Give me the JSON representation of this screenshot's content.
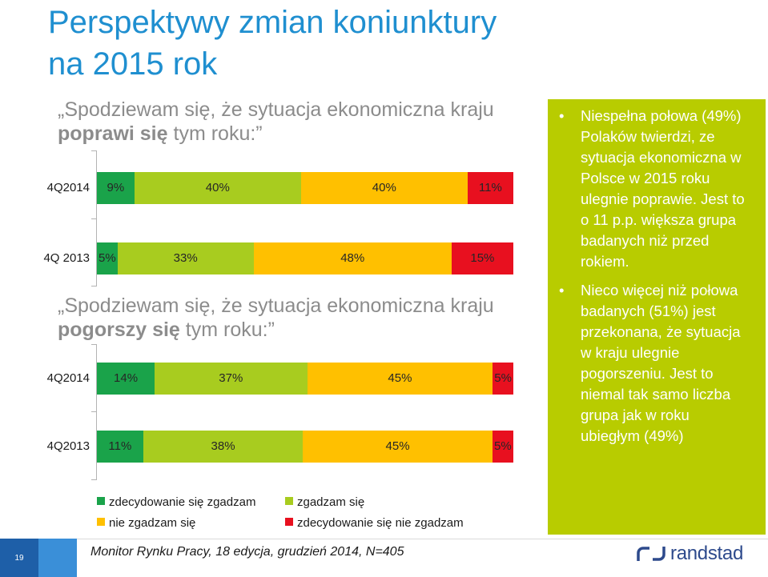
{
  "title_line1": "Perspektywy zmian koniunktury",
  "title_line2": "na 2015 rok",
  "question1": {
    "pre": "„Spodziewam się, że sytuacja ekonomiczna kraju ",
    "bold": "poprawi się",
    "post": " tym roku:”"
  },
  "question2": {
    "pre": "„Spodziewam się, że sytuacja ekonomiczna kraju ",
    "bold": "pogorszy się",
    "post": " tym roku:”"
  },
  "legend": [
    {
      "label": "zdecydowanie się zgadzam",
      "color": "#1aa34a"
    },
    {
      "label": "zgadzam się",
      "color": "#a8cc1f"
    },
    {
      "label": "nie zgadzam się",
      "color": "#ffc000"
    },
    {
      "label": "zdecydowanie się nie zgadzam",
      "color": "#e8101f"
    }
  ],
  "side_box": {
    "bullet_char": "•",
    "bullets": [
      "Niespełna połowa (49%) Polaków twierdzi, ze sytuacja ekonomiczna w Polsce w 2015 roku ulegnie poprawie. Jest to o 11 p.p. większa grupa badanych niż przed rokiem.",
      "Nieco więcej niż połowa badanych (51%) jest przekonana, że sytuacja w kraju ulegnie pogorszeniu. Jest to niemal tak samo liczba grupa jak w roku ubiegłym (49%)"
    ],
    "color": "#b8cc00"
  },
  "footer": {
    "page_number": "19",
    "note": "Monitor Rynku Pracy, 18 edycja, grudzień 2014, N=405",
    "logo_text": "randstad"
  },
  "chart_data": [
    {
      "type": "bar",
      "orientation": "horizontal",
      "stacked": true,
      "categories": [
        "4Q2014",
        "4Q 2013"
      ],
      "series": [
        {
          "name": "zdecydowanie się zgadzam",
          "values": [
            9,
            5
          ],
          "labels": [
            "9%",
            "5%"
          ]
        },
        {
          "name": "zgadzam się",
          "values": [
            40,
            33
          ],
          "labels": [
            "40%",
            "33%"
          ]
        },
        {
          "name": "nie zgadzam się",
          "values": [
            40,
            48
          ],
          "labels": [
            "40%",
            "48%"
          ]
        },
        {
          "name": "zdecydowanie się nie zgadzam",
          "values": [
            11,
            15
          ],
          "labels": [
            "11%",
            "15%"
          ]
        }
      ],
      "xlim": [
        0,
        100
      ]
    },
    {
      "type": "bar",
      "orientation": "horizontal",
      "stacked": true,
      "categories": [
        "4Q2014",
        "4Q2013"
      ],
      "series": [
        {
          "name": "zdecydowanie się zgadzam",
          "values": [
            14,
            11
          ],
          "labels": [
            "14%",
            "11%"
          ]
        },
        {
          "name": "zgadzam się",
          "values": [
            37,
            38
          ],
          "labels": [
            "37%",
            "38%"
          ]
        },
        {
          "name": "nie zgadzam się",
          "values": [
            45,
            45
          ],
          "labels": [
            "45%",
            "45%"
          ]
        },
        {
          "name": "zdecydowanie się nie zgadzam",
          "values": [
            5,
            5
          ],
          "labels": [
            "5%",
            "5%"
          ]
        }
      ],
      "xlim": [
        0,
        100
      ]
    }
  ]
}
